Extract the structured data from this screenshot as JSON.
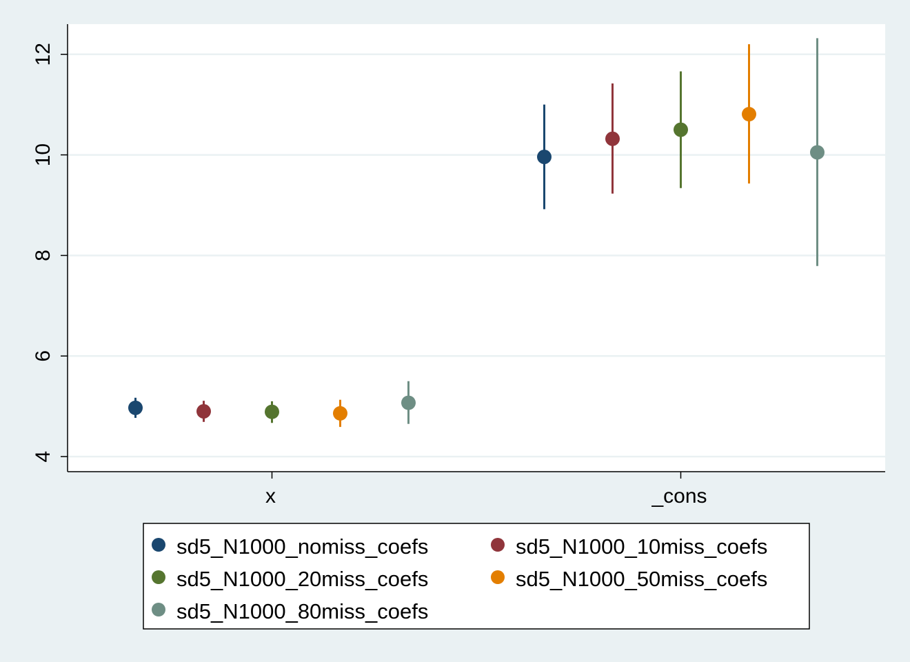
{
  "chart_data": {
    "type": "scatter",
    "title": "",
    "xlabel": "",
    "ylabel": "",
    "categories": [
      "x",
      "_cons"
    ],
    "ylim": [
      3.7,
      12.6
    ],
    "yticks": [
      "4",
      "6",
      "8",
      "10",
      "12"
    ],
    "grid": true,
    "legend_placement": "bottom",
    "series": [
      {
        "name": "sd5_N1000_nomiss_coefs",
        "color": "#1a476f",
        "points": [
          {
            "category": "x",
            "y": 4.97,
            "lo": 4.77,
            "hi": 5.17
          },
          {
            "category": "_cons",
            "y": 9.96,
            "lo": 8.92,
            "hi": 11.0
          }
        ]
      },
      {
        "name": "sd5_N1000_10miss_coefs",
        "color": "#90353b",
        "points": [
          {
            "category": "x",
            "y": 4.9,
            "lo": 4.69,
            "hi": 5.11
          },
          {
            "category": "_cons",
            "y": 10.32,
            "lo": 9.23,
            "hi": 11.42
          }
        ]
      },
      {
        "name": "sd5_N1000_20miss_coefs",
        "color": "#55752f",
        "points": [
          {
            "category": "x",
            "y": 4.89,
            "lo": 4.67,
            "hi": 5.1
          },
          {
            "category": "_cons",
            "y": 10.5,
            "lo": 9.34,
            "hi": 11.66
          }
        ]
      },
      {
        "name": "sd5_N1000_50miss_coefs",
        "color": "#e37e00",
        "points": [
          {
            "category": "x",
            "y": 4.86,
            "lo": 4.59,
            "hi": 5.13
          },
          {
            "category": "_cons",
            "y": 10.81,
            "lo": 9.43,
            "hi": 12.2
          }
        ]
      },
      {
        "name": "sd5_N1000_80miss_coefs",
        "color": "#6e8e84",
        "points": [
          {
            "category": "x",
            "y": 5.07,
            "lo": 4.65,
            "hi": 5.5
          },
          {
            "category": "_cons",
            "y": 10.05,
            "lo": 7.79,
            "hi": 12.32
          }
        ]
      }
    ]
  }
}
